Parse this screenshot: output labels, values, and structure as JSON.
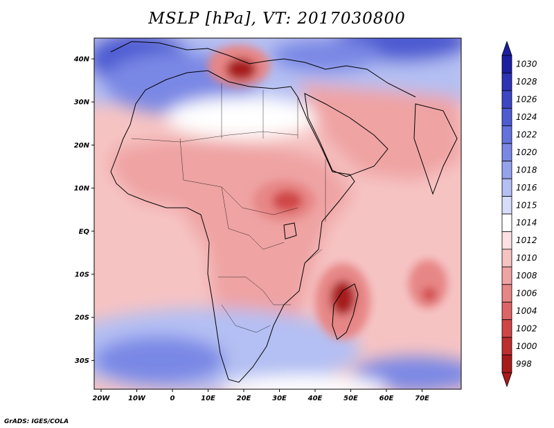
{
  "title": "MSLP [hPa], VT: 2017030800",
  "credit": "GrADS: IGES/COLA",
  "axes": {
    "lat_labels": [
      "40N",
      "30N",
      "20N",
      "10N",
      "EQ",
      "10S",
      "20S",
      "30S"
    ],
    "lon_labels": [
      "20W",
      "10W",
      "0",
      "10E",
      "20E",
      "30E",
      "40E",
      "50E",
      "60E",
      "70E"
    ]
  },
  "colorbar": {
    "labels": [
      "1030",
      "1028",
      "1026",
      "1024",
      "1022",
      "1020",
      "1018",
      "1016",
      "1015",
      "1014",
      "1012",
      "1010",
      "1008",
      "1006",
      "1004",
      "1002",
      "1000",
      "998"
    ],
    "colors": [
      "#1c1fa0",
      "#2c33b5",
      "#3d47c4",
      "#4e5cd2",
      "#6472dd",
      "#7a88e5",
      "#95a2ec",
      "#b4bff3",
      "#d6dcf9",
      "#ffffff",
      "#fbe1e1",
      "#f6c3c3",
      "#efa3a3",
      "#e78686",
      "#dd6565",
      "#d04646",
      "#bd2e2e",
      "#a71a1a"
    ]
  },
  "field_colors": {
    "land_base": "#efa3a3",
    "ocean_base": "#f6c3c3",
    "high_dark": "#4e5cd2",
    "high_mid": "#7a88e5",
    "high_light": "#b4bff3",
    "neutral": "#ffffff",
    "low_mid": "#e78686",
    "low_deep": "#d04646",
    "low_core": "#a71a1a",
    "coast": "#000000"
  }
}
